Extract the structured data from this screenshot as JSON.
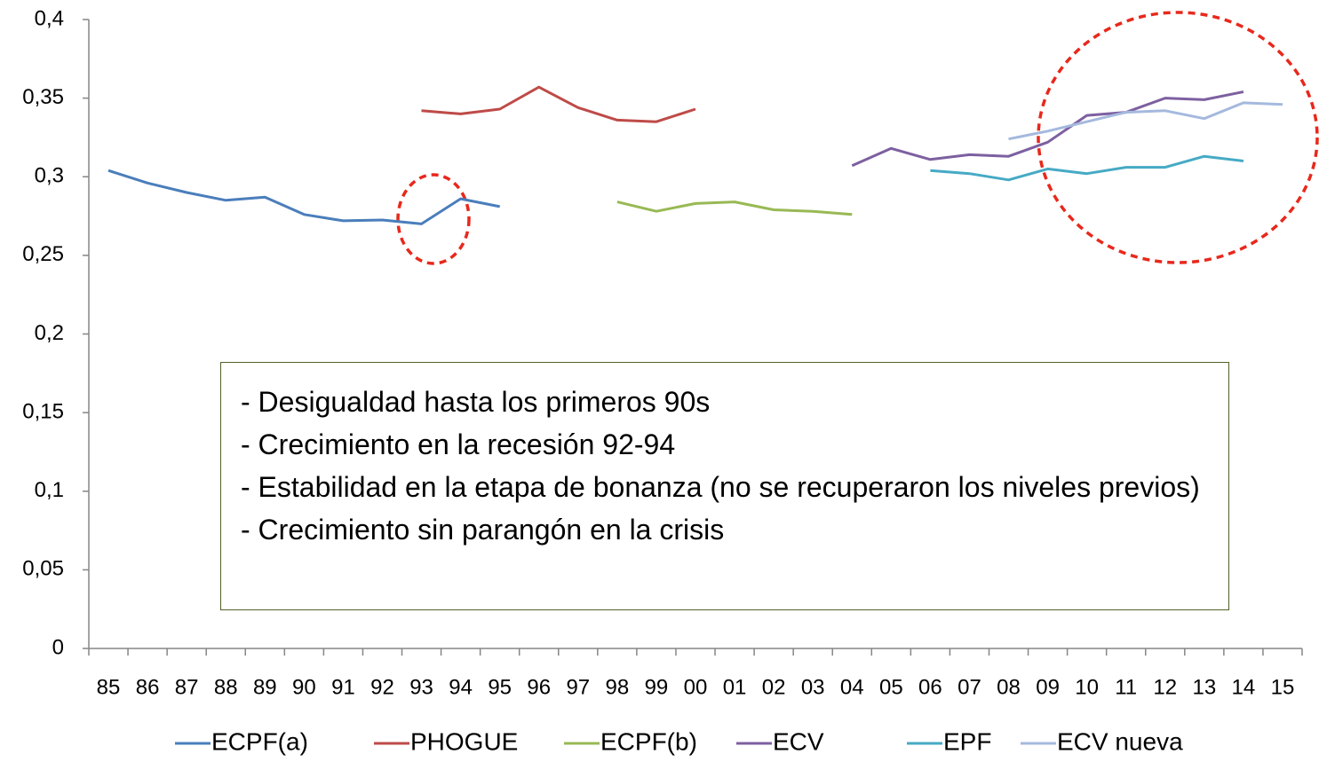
{
  "chart_data": {
    "type": "line",
    "categories": [
      "85",
      "86",
      "87",
      "88",
      "89",
      "90",
      "91",
      "92",
      "93",
      "94",
      "95",
      "96",
      "97",
      "98",
      "99",
      "00",
      "01",
      "02",
      "03",
      "04",
      "05",
      "06",
      "07",
      "08",
      "09",
      "10",
      "11",
      "12",
      "13",
      "14",
      "15"
    ],
    "series": [
      {
        "name": "ECPF(a)",
        "color": "#4a7ebb",
        "values": [
          0.304,
          0.296,
          0.29,
          0.285,
          0.287,
          0.276,
          0.272,
          0.2725,
          0.27,
          0.286,
          0.281,
          null,
          null,
          null,
          null,
          null,
          null,
          null,
          null,
          null,
          null,
          null,
          null,
          null,
          null,
          null,
          null,
          null,
          null,
          null,
          null
        ]
      },
      {
        "name": "PHOGUE",
        "color": "#be4b48",
        "values": [
          null,
          null,
          null,
          null,
          null,
          null,
          null,
          null,
          0.342,
          0.34,
          0.343,
          0.357,
          0.344,
          0.336,
          0.335,
          0.343,
          null,
          null,
          null,
          null,
          null,
          null,
          null,
          null,
          null,
          null,
          null,
          null,
          null,
          null,
          null
        ]
      },
      {
        "name": "ECPF(b)",
        "color": "#98b954",
        "values": [
          null,
          null,
          null,
          null,
          null,
          null,
          null,
          null,
          null,
          null,
          null,
          null,
          null,
          0.284,
          0.278,
          0.283,
          0.284,
          0.279,
          0.278,
          0.276,
          null,
          null,
          null,
          null,
          null,
          null,
          null,
          null,
          null,
          null,
          null
        ]
      },
      {
        "name": "ECV",
        "color": "#7d60a0",
        "values": [
          null,
          null,
          null,
          null,
          null,
          null,
          null,
          null,
          null,
          null,
          null,
          null,
          null,
          null,
          null,
          null,
          null,
          null,
          null,
          0.307,
          0.318,
          0.311,
          0.314,
          0.313,
          0.322,
          0.339,
          0.341,
          0.35,
          0.349,
          0.354,
          null
        ]
      },
      {
        "name": "EPF",
        "color": "#46aac5",
        "values": [
          null,
          null,
          null,
          null,
          null,
          null,
          null,
          null,
          null,
          null,
          null,
          null,
          null,
          null,
          null,
          null,
          null,
          null,
          null,
          null,
          null,
          0.304,
          0.302,
          0.298,
          0.305,
          0.302,
          0.306,
          0.306,
          0.313,
          0.31,
          null
        ]
      },
      {
        "name": "ECV nueva",
        "color": "#a5b9de",
        "values": [
          null,
          null,
          null,
          null,
          null,
          null,
          null,
          null,
          null,
          null,
          null,
          null,
          null,
          null,
          null,
          null,
          null,
          null,
          null,
          null,
          null,
          null,
          null,
          0.324,
          0.329,
          0.335,
          0.341,
          0.342,
          0.337,
          0.347,
          0.346
        ]
      }
    ],
    "ylim": [
      0,
      0.4
    ],
    "yticks": [
      0,
      {
        "value": 0.05,
        "label": "0,05"
      },
      {
        "value": 0.1,
        "label": "0,1"
      },
      {
        "value": 0.15,
        "label": "0,15"
      },
      {
        "value": 0.2,
        "label": "0,2"
      },
      {
        "value": 0.25,
        "label": "0,25"
      },
      {
        "value": 0.3,
        "label": "0,3"
      },
      {
        "value": 0.35,
        "label": "0,35"
      },
      {
        "value": 0.4,
        "label": "0,4"
      }
    ],
    "annotations": [
      "- Desigualdad hasta los primeros 90s",
      "- Crecimiento en la recesión 92-94",
      "- Estabilidad en la etapa de bonanza (no se recuperaron los niveles previos)",
      "- Crecimiento sin parangón en la crisis"
    ],
    "legend": "bottom"
  }
}
